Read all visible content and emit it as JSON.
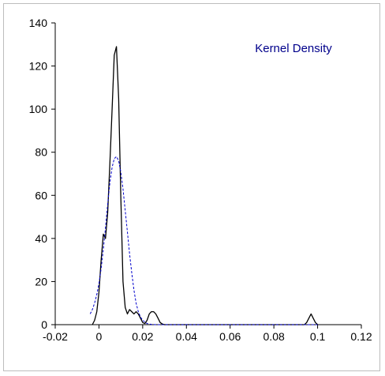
{
  "chart_data": {
    "type": "line",
    "title": "",
    "xlabel": "",
    "ylabel": "",
    "xlim": [
      -0.02,
      0.12
    ],
    "ylim": [
      0,
      140
    ],
    "x_ticks": [
      "-0.02",
      "0",
      "0.02",
      "0.04",
      "0.06",
      "0.08",
      "0.1",
      "0.12"
    ],
    "y_ticks": [
      "0",
      "20",
      "40",
      "60",
      "80",
      "100",
      "120",
      "140"
    ],
    "grid": false,
    "legend": {
      "position": "top-right",
      "entries": [
        "Kernel Density"
      ]
    },
    "colors": {
      "kernel": "#000000",
      "normal": "#0000cc",
      "legend_text": "#00008b",
      "frame": "#bdbdbd"
    },
    "series": [
      {
        "name": "Kernel Density",
        "style": "solid",
        "x": [
          -0.003,
          -0.002,
          -0.001,
          0.0,
          0.001,
          0.002,
          0.003,
          0.004,
          0.005,
          0.006,
          0.007,
          0.008,
          0.009,
          0.01,
          0.011,
          0.012,
          0.013,
          0.014,
          0.015,
          0.016,
          0.017,
          0.018,
          0.019,
          0.02,
          0.021,
          0.022,
          0.023,
          0.024,
          0.025,
          0.026,
          0.027,
          0.028,
          0.029,
          0.03,
          0.04,
          0.06,
          0.08,
          0.094,
          0.095,
          0.096,
          0.097,
          0.098,
          0.099,
          0.1
        ],
        "values": [
          0,
          2,
          6,
          15,
          30,
          42,
          40,
          52,
          75,
          100,
          125,
          129,
          105,
          60,
          20,
          8,
          5,
          7,
          6,
          5,
          6,
          5,
          3,
          1,
          0.5,
          2,
          5,
          6,
          6,
          5,
          3,
          1,
          0.3,
          0,
          0,
          0,
          0,
          0,
          1,
          3,
          5,
          3,
          1,
          0
        ]
      },
      {
        "name": "",
        "style": "dashed",
        "x": [
          -0.004,
          -0.003,
          -0.002,
          -0.001,
          0.0,
          0.001,
          0.002,
          0.003,
          0.004,
          0.005,
          0.006,
          0.007,
          0.008,
          0.009,
          0.01,
          0.011,
          0.012,
          0.013,
          0.014,
          0.015,
          0.016,
          0.017,
          0.018,
          0.019,
          0.02,
          0.022,
          0.024,
          0.026,
          0.03,
          0.04,
          0.06,
          0.08,
          0.1
        ],
        "values": [
          5,
          7,
          10,
          14,
          19,
          26,
          35,
          45,
          56,
          66,
          73,
          77,
          78,
          76,
          71,
          63,
          53,
          43,
          33,
          24,
          16,
          10,
          6,
          3.5,
          2,
          0.5,
          0.1,
          0,
          0,
          0,
          0,
          0,
          0
        ]
      }
    ]
  }
}
